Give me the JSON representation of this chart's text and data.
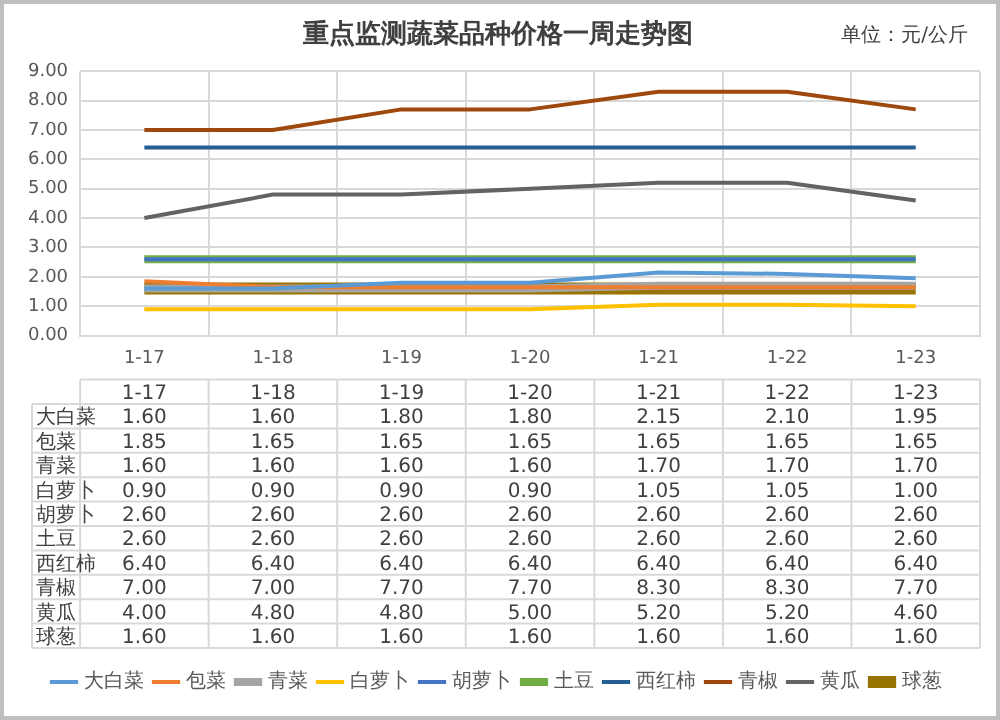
{
  "chart_data": {
    "type": "line",
    "title": "重点监测蔬菜品种价格一周走势图",
    "annotations": [
      "单位：元/公斤"
    ],
    "categories": [
      "1-17",
      "1-18",
      "1-19",
      "1-20",
      "1-21",
      "1-22",
      "1-23"
    ],
    "ylim": [
      0,
      9
    ],
    "yticks": [
      {
        "value": 0,
        "label": "0.00"
      },
      {
        "value": 1,
        "label": "1.00"
      },
      {
        "value": 2,
        "label": "2.00"
      },
      {
        "value": 3,
        "label": "3.00"
      },
      {
        "value": 4,
        "label": "4.00"
      },
      {
        "value": 5,
        "label": "5.00"
      },
      {
        "value": 6,
        "label": "6.00"
      },
      {
        "value": 7,
        "label": "7.00"
      },
      {
        "value": 8,
        "label": "8.00"
      },
      {
        "value": 9,
        "label": "9.00"
      }
    ],
    "grid": true,
    "legend": "bottom",
    "marker": "none",
    "line_style": "solid",
    "series": [
      {
        "name": "大白菜",
        "color": "#5b9bd5",
        "values": [
          1.6,
          1.6,
          1.8,
          1.8,
          2.15,
          2.1,
          1.95
        ],
        "value_labels": [
          "1.60",
          "1.60",
          "1.80",
          "1.80",
          "2.15",
          "2.10",
          "1.95"
        ]
      },
      {
        "name": "包菜",
        "color": "#ed7d31",
        "values": [
          1.85,
          1.65,
          1.65,
          1.65,
          1.65,
          1.65,
          1.65
        ],
        "value_labels": [
          "1.85",
          "1.65",
          "1.65",
          "1.65",
          "1.65",
          "1.65",
          "1.65"
        ]
      },
      {
        "name": "青菜",
        "color": "#a5a5a5",
        "values": [
          1.6,
          1.6,
          1.6,
          1.6,
          1.7,
          1.7,
          1.7
        ],
        "value_labels": [
          "1.60",
          "1.60",
          "1.60",
          "1.60",
          "1.70",
          "1.70",
          "1.70"
        ]
      },
      {
        "name": "白萝卜",
        "color": "#ffc000",
        "values": [
          0.9,
          0.9,
          0.9,
          0.9,
          1.05,
          1.05,
          1.0
        ],
        "value_labels": [
          "0.90",
          "0.90",
          "0.90",
          "0.90",
          "1.05",
          "1.05",
          "1.00"
        ]
      },
      {
        "name": "胡萝卜",
        "color": "#4472c4",
        "values": [
          2.6,
          2.6,
          2.6,
          2.6,
          2.6,
          2.6,
          2.6
        ],
        "value_labels": [
          "2.60",
          "2.60",
          "2.60",
          "2.60",
          "2.60",
          "2.60",
          "2.60"
        ]
      },
      {
        "name": "土豆",
        "color": "#70ad47",
        "values": [
          2.6,
          2.6,
          2.6,
          2.6,
          2.6,
          2.6,
          2.6
        ],
        "value_labels": [
          "2.60",
          "2.60",
          "2.60",
          "2.60",
          "2.60",
          "2.60",
          "2.60"
        ]
      },
      {
        "name": "西红柿",
        "color": "#255e91",
        "values": [
          6.4,
          6.4,
          6.4,
          6.4,
          6.4,
          6.4,
          6.4
        ],
        "value_labels": [
          "6.40",
          "6.40",
          "6.40",
          "6.40",
          "6.40",
          "6.40",
          "6.40"
        ]
      },
      {
        "name": "青椒",
        "color": "#9e480e",
        "values": [
          7.0,
          7.0,
          7.7,
          7.7,
          8.3,
          8.3,
          7.7
        ],
        "value_labels": [
          "7.00",
          "7.00",
          "7.70",
          "7.70",
          "8.30",
          "8.30",
          "7.70"
        ]
      },
      {
        "name": "黄瓜",
        "color": "#636363",
        "values": [
          4.0,
          4.8,
          4.8,
          5.0,
          5.2,
          5.2,
          4.6
        ],
        "value_labels": [
          "4.00",
          "4.80",
          "4.80",
          "5.00",
          "5.20",
          "5.20",
          "4.60"
        ]
      },
      {
        "name": "球葱",
        "color": "#997300",
        "values": [
          1.6,
          1.6,
          1.6,
          1.6,
          1.6,
          1.6,
          1.6
        ],
        "value_labels": [
          "1.60",
          "1.60",
          "1.60",
          "1.60",
          "1.60",
          "1.60",
          "1.60"
        ]
      }
    ]
  }
}
